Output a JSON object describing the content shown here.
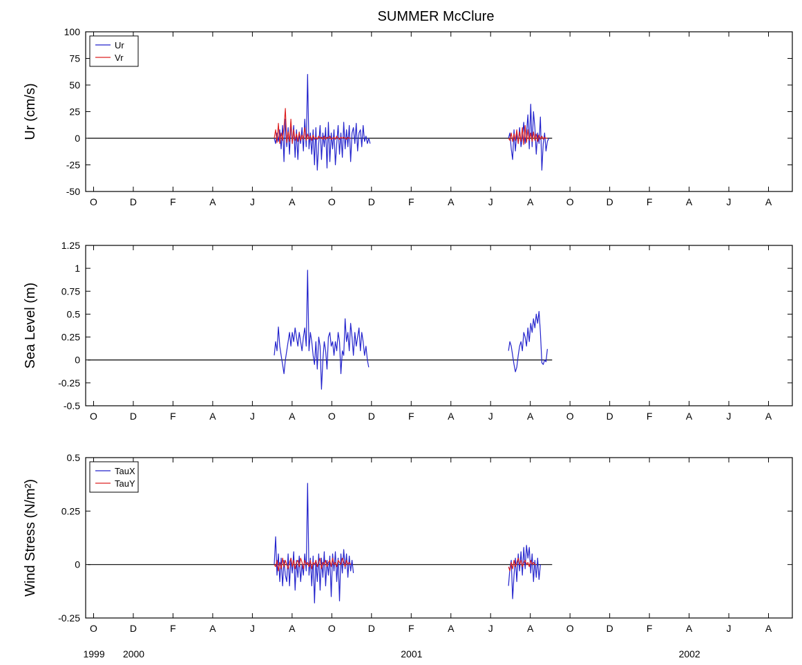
{
  "chart_data": {
    "title": "SUMMER McClure",
    "years": [
      {
        "label": "1999",
        "month_index": 0
      },
      {
        "label": "2000",
        "month_index": 2
      },
      {
        "label": "2001",
        "month_index": 16
      },
      {
        "label": "2002",
        "month_index": 30
      }
    ],
    "xtick_labels": [
      "O",
      "D",
      "F",
      "A",
      "J",
      "A",
      "O",
      "D",
      "F",
      "A",
      "J",
      "A",
      "O",
      "D",
      "F",
      "A",
      "J",
      "A"
    ],
    "xtick_months": [
      0,
      2,
      4,
      6,
      8,
      10,
      12,
      14,
      16,
      18,
      20,
      22,
      24,
      26,
      28,
      30,
      32,
      34
    ],
    "xlim_months": [
      -0.4,
      35.2
    ],
    "zero_line_months": [
      -0.3,
      23.1
    ],
    "panels": [
      {
        "type": "line",
        "ylabel": "Ur (cm/s)",
        "ylim": [
          -50,
          100
        ],
        "yticks": [
          -50,
          -25,
          0,
          25,
          50,
          75,
          100
        ],
        "ytick_labels": [
          "-50",
          "-25",
          "0",
          "25",
          "50",
          "75",
          "100"
        ],
        "legend": {
          "placement": "top-left",
          "entries": [
            "Ur",
            "Vr"
          ]
        },
        "series": [
          {
            "name": "Ur",
            "color": "#2222cc",
            "segments": [
              {
                "start": 9.1,
                "step": 0.07,
                "values": [
                  0,
                  -5,
                  5,
                  -3,
                  8,
                  -10,
                  12,
                  -22,
                  18,
                  -8,
                  10,
                  -15,
                  15,
                  -5,
                  12,
                  -18,
                  8,
                  -20,
                  5,
                  -5,
                  10,
                  -12,
                  18,
                  -8,
                  60,
                  -10,
                  5,
                  -15,
                  8,
                  -25,
                  10,
                  -30,
                  -5,
                  12,
                  -20,
                  5,
                  -8,
                  10,
                  -28,
                  15,
                  -22,
                  5,
                  -10,
                  8,
                  -25,
                  -5,
                  12,
                  -15,
                  5,
                  -18,
                  15,
                  -10,
                  8,
                  -8,
                  12,
                  -22,
                  5,
                  10,
                  -5,
                  14,
                  -12,
                  5,
                  8,
                  -8,
                  12,
                  -3,
                  2,
                  -5,
                  0,
                  -5
                ]
              },
              {
                "start": 20.9,
                "step": 0.07,
                "values": [
                  0,
                  5,
                  -10,
                  -20,
                  8,
                  -12,
                  5,
                  -5,
                  10,
                  -8,
                  0,
                  15,
                  -5,
                  5,
                  22,
                  -10,
                  32,
                  -8,
                  25,
                  10,
                  -15,
                  5,
                  -5,
                  20,
                  -30,
                  -5,
                  5,
                  -12,
                  -3,
                  0
                ]
              }
            ]
          },
          {
            "name": "Vr",
            "color": "#dd2222",
            "segments": [
              {
                "start": 9.1,
                "step": 0.07,
                "values": [
                  0,
                  8,
                  -4,
                  14,
                  -5,
                  5,
                  -2,
                  10,
                  28,
                  -4,
                  6,
                  -3,
                  18,
                  -5,
                  8,
                  -2,
                  4,
                  -3,
                  6,
                  -2,
                  3,
                  -1,
                  10,
                  -2,
                  4,
                  -1,
                  2,
                  -2,
                  3,
                  -1,
                  1,
                  -1,
                  2,
                  0,
                  1,
                  -1,
                  2,
                  -1,
                  1,
                  0,
                  2,
                  -1,
                  0,
                  1,
                  -1,
                  2,
                  0,
                  -1,
                  1,
                  0,
                  1,
                  0,
                  -1,
                  1,
                  0,
                  0
                ]
              },
              {
                "start": 20.9,
                "step": 0.07,
                "values": [
                  0,
                  -2,
                  5,
                  -3,
                  4,
                  -2,
                  8,
                  -5,
                  6,
                  -3,
                  10,
                  -6,
                  12,
                  -4,
                  8,
                  -2,
                  5,
                  -3,
                  6,
                  -2,
                  4,
                  -3,
                  3,
                  -1,
                  2,
                  -1,
                  1,
                  0,
                  0
                ]
              }
            ]
          }
        ]
      },
      {
        "type": "line",
        "ylabel": "Sea Level (m)",
        "ylim": [
          -0.5,
          1.25
        ],
        "yticks": [
          -0.5,
          -0.25,
          0,
          0.25,
          0.5,
          0.75,
          1,
          1.25
        ],
        "ytick_labels": [
          "-0.5",
          "-0.25",
          "0",
          "0.25",
          "0.5",
          "0.75",
          "1",
          "1.25"
        ],
        "series": [
          {
            "name": "",
            "color": "#2222cc",
            "segments": [
              {
                "start": 9.1,
                "step": 0.07,
                "values": [
                  0.05,
                  0.2,
                  0.1,
                  0.36,
                  0.15,
                  0.05,
                  -0.05,
                  -0.15,
                  0.0,
                  0.1,
                  0.2,
                  0.3,
                  0.15,
                  0.3,
                  0.2,
                  0.35,
                  0.25,
                  0.15,
                  0.3,
                  0.2,
                  0.1,
                  0.25,
                  0.35,
                  0.15,
                  0.98,
                  0.1,
                  0.3,
                  0.2,
                  0.05,
                  -0.05,
                  0.2,
                  -0.1,
                  0.25,
                  0.15,
                  -0.32,
                  0.0,
                  0.2,
                  0.1,
                  -0.1,
                  0.25,
                  0.3,
                  0.15,
                  0.2,
                  0.05,
                  0.2,
                  0.1,
                  0.3,
                  0.2,
                  -0.15,
                  0.1,
                  0.05,
                  0.45,
                  0.2,
                  0.3,
                  0.1,
                  0.4,
                  0.25,
                  0.05,
                  0.3,
                  0.15,
                  0.25,
                  0.35,
                  0.1,
                  0.3,
                  0.2,
                  0.05,
                  0.15,
                  0.0,
                  -0.08
                ]
              },
              {
                "start": 20.9,
                "step": 0.07,
                "values": [
                  0.1,
                  0.2,
                  0.15,
                  0.05,
                  -0.05,
                  -0.13,
                  -0.08,
                  0.05,
                  0.15,
                  0.2,
                  0.1,
                  0.3,
                  0.25,
                  0.15,
                  0.35,
                  0.2,
                  0.4,
                  0.3,
                  0.45,
                  0.35,
                  0.5,
                  0.4,
                  0.53,
                  0.3,
                  -0.03,
                  -0.05,
                  0.0,
                  -0.02,
                  0.12
                ]
              }
            ]
          }
        ]
      },
      {
        "type": "line",
        "ylabel": "Wind Stress (N/m²)",
        "ylim": [
          -0.25,
          0.5
        ],
        "yticks": [
          -0.25,
          0,
          0.25,
          0.5
        ],
        "ytick_labels": [
          "-0.25",
          "0",
          "0.25",
          "0.5"
        ],
        "legend": {
          "placement": "top-left",
          "entries": [
            "TauX",
            "TauY"
          ]
        },
        "series": [
          {
            "name": "TauX",
            "color": "#2222cc",
            "segments": [
              {
                "start": 9.1,
                "step": 0.07,
                "values": [
                  0.0,
                  0.13,
                  -0.05,
                  0.05,
                  -0.08,
                  0.03,
                  -0.1,
                  0.02,
                  -0.05,
                  -0.08,
                  0.05,
                  -0.1,
                  0.03,
                  -0.04,
                  0.06,
                  -0.12,
                  0.02,
                  -0.06,
                  0.04,
                  -0.08,
                  0.0,
                  -0.05,
                  0.05,
                  -0.03,
                  0.38,
                  -0.05,
                  0.03,
                  -0.1,
                  0.04,
                  -0.18,
                  0.02,
                  -0.08,
                  0.05,
                  -0.12,
                  0.03,
                  -0.06,
                  0.06,
                  -0.1,
                  0.02,
                  -0.05,
                  0.04,
                  -0.15,
                  0.05,
                  -0.03,
                  0.06,
                  -0.08,
                  0.03,
                  -0.17,
                  0.05,
                  -0.04,
                  0.07,
                  -0.02,
                  0.05,
                  -0.06,
                  0.04,
                  -0.03,
                  0.02,
                  -0.04
                ]
              },
              {
                "start": 20.9,
                "step": 0.07,
                "values": [
                  -0.1,
                  -0.02,
                  0.02,
                  -0.16,
                  -0.05,
                  0.03,
                  -0.08,
                  0.05,
                  -0.03,
                  0.06,
                  -0.05,
                  0.08,
                  -0.02,
                  0.09,
                  0.03,
                  0.08,
                  -0.04,
                  0.05,
                  -0.08,
                  0.02,
                  -0.06,
                  0.03,
                  -0.07,
                  0.0
                ]
              }
            ]
          },
          {
            "name": "TauY",
            "color": "#dd2222",
            "segments": [
              {
                "start": 9.1,
                "step": 0.07,
                "values": [
                  0.0,
                  -0.01,
                  0.02,
                  -0.03,
                  0.01,
                  -0.02,
                  0.03,
                  -0.01,
                  0.02,
                  0.0,
                  -0.02,
                  0.01,
                  0.03,
                  -0.01,
                  0.02,
                  -0.02,
                  0.01,
                  0.02,
                  -0.01,
                  0.03,
                  0.01,
                  -0.02,
                  0.02,
                  0.0,
                  0.01,
                  -0.01,
                  0.02,
                  -0.02,
                  0.01,
                  0.0,
                  0.02,
                  -0.01,
                  0.01,
                  0.03,
                  -0.02,
                  0.01,
                  0.0,
                  0.02,
                  -0.01,
                  0.01,
                  0.02,
                  -0.01,
                  0.03,
                  0.0,
                  0.01,
                  -0.01,
                  0.02,
                  0.01,
                  0.0,
                  0.03,
                  0.01,
                  -0.01,
                  0.02,
                  0.0,
                  0.01,
                  0.0
                ]
              },
              {
                "start": 20.9,
                "step": 0.07,
                "values": [
                  -0.01,
                  -0.03,
                  0.01,
                  -0.02,
                  0.02,
                  -0.01,
                  0.01,
                  0.03,
                  0.0,
                  0.02,
                  -0.01,
                  0.01,
                  0.02,
                  0.0,
                  0.01,
                  -0.01,
                  0.02,
                  0.0,
                  0.01,
                  0.0,
                  0.0
                ]
              }
            ]
          }
        ]
      }
    ]
  }
}
